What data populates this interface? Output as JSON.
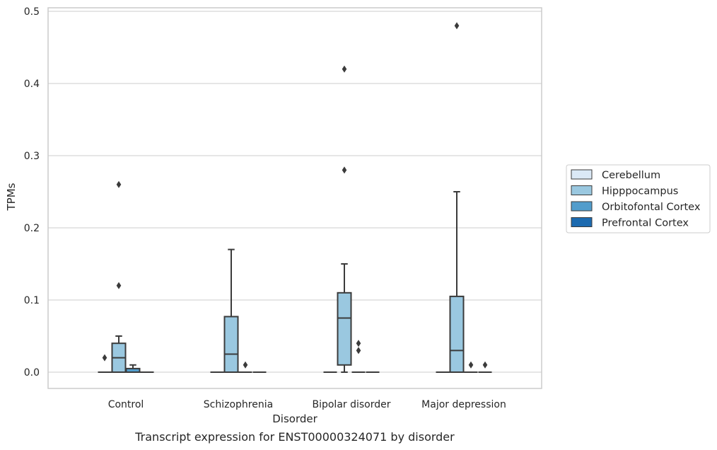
{
  "chart_data": {
    "type": "box",
    "caption": "Transcript expression for ENST00000324071 by disorder",
    "xlabel": "Disorder",
    "ylabel": "TPMs",
    "ylim": [
      -0.023,
      0.505
    ],
    "yticks": [
      0.0,
      0.1,
      0.2,
      0.3,
      0.4,
      0.5
    ],
    "ytick_labels": [
      "0.0",
      "0.1",
      "0.2",
      "0.3",
      "0.4",
      "0.5"
    ],
    "grid": true,
    "legend_position": "right",
    "categories": [
      "Control",
      "Schizophrenia",
      "Bipolar disorder",
      "Major depression"
    ],
    "series": [
      {
        "name": "Cerebellum",
        "color": "#dbe9f6",
        "boxes": [
          {
            "q1": 0,
            "median": 0,
            "q3": 0,
            "whisker_low": 0,
            "whisker_high": 0,
            "outliers": [
              0.02
            ]
          },
          {
            "q1": 0,
            "median": 0,
            "q3": 0,
            "whisker_low": 0,
            "whisker_high": 0,
            "outliers": []
          },
          {
            "q1": 0,
            "median": 0,
            "q3": 0,
            "whisker_low": 0,
            "whisker_high": 0,
            "outliers": []
          },
          {
            "q1": 0,
            "median": 0,
            "q3": 0,
            "whisker_low": 0,
            "whisker_high": 0,
            "outliers": []
          }
        ]
      },
      {
        "name": "Hipppocampus",
        "color": "#9ac8e0",
        "boxes": [
          {
            "q1": 0,
            "median": 0.02,
            "q3": 0.04,
            "whisker_low": 0,
            "whisker_high": 0.05,
            "outliers": [
              0.12,
              0.26
            ]
          },
          {
            "q1": 0,
            "median": 0.025,
            "q3": 0.077,
            "whisker_low": 0,
            "whisker_high": 0.17,
            "outliers": []
          },
          {
            "q1": 0.01,
            "median": 0.075,
            "q3": 0.11,
            "whisker_low": 0,
            "whisker_high": 0.15,
            "outliers": [
              0.28,
              0.42
            ]
          },
          {
            "q1": 0,
            "median": 0.03,
            "q3": 0.105,
            "whisker_low": 0,
            "whisker_high": 0.25,
            "outliers": [
              0.48
            ]
          }
        ]
      },
      {
        "name": "Orbitofontal Cortex",
        "color": "#529dcc",
        "boxes": [
          {
            "q1": 0,
            "median": 0,
            "q3": 0.005,
            "whisker_low": 0,
            "whisker_high": 0.01,
            "outliers": []
          },
          {
            "q1": 0,
            "median": 0,
            "q3": 0,
            "whisker_low": 0,
            "whisker_high": 0,
            "outliers": [
              0.01
            ]
          },
          {
            "q1": 0,
            "median": 0,
            "q3": 0,
            "whisker_low": 0,
            "whisker_high": 0,
            "outliers": [
              0.03,
              0.04
            ]
          },
          {
            "q1": 0,
            "median": 0,
            "q3": 0,
            "whisker_low": 0,
            "whisker_high": 0,
            "outliers": [
              0.01
            ]
          }
        ]
      },
      {
        "name": "Prefrontal Cortex",
        "color": "#1c6aaf",
        "boxes": [
          {
            "q1": 0,
            "median": 0,
            "q3": 0,
            "whisker_low": 0,
            "whisker_high": 0,
            "outliers": []
          },
          {
            "q1": 0,
            "median": 0,
            "q3": 0,
            "whisker_low": 0,
            "whisker_high": 0,
            "outliers": []
          },
          {
            "q1": 0,
            "median": 0,
            "q3": 0,
            "whisker_low": 0,
            "whisker_high": 0,
            "outliers": []
          },
          {
            "q1": 0,
            "median": 0,
            "q3": 0,
            "whisker_low": 0,
            "whisker_high": 0,
            "outliers": [
              0.01
            ]
          }
        ]
      }
    ]
  },
  "colors": {
    "line": "#3b3b3b",
    "grid": "#cccccc",
    "frame": "#cccccc",
    "legend_frame": "#cccccc"
  }
}
